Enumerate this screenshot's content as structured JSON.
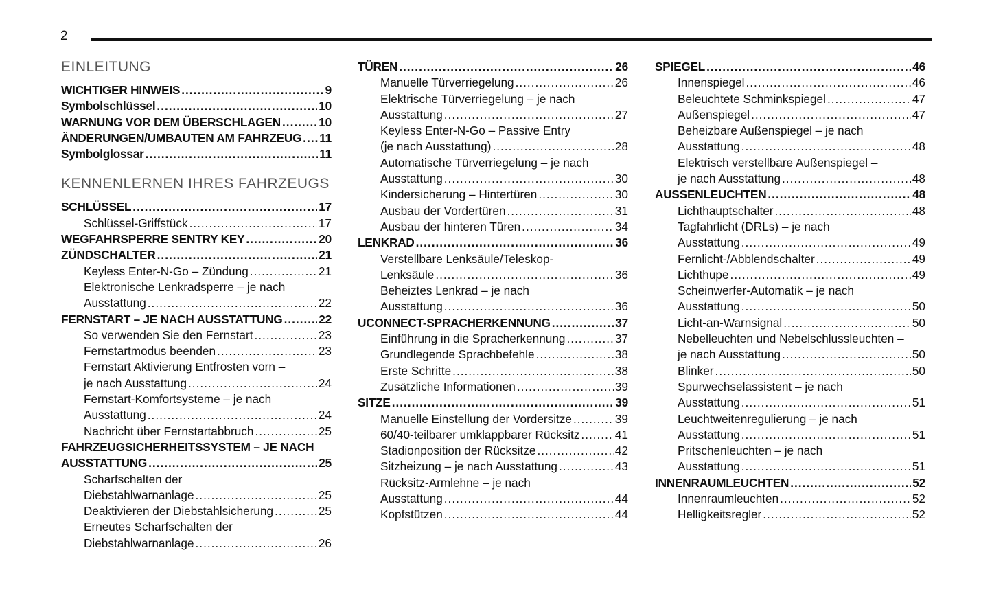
{
  "page_number": "2",
  "columns": [
    [
      {
        "type": "section",
        "text": "EINLEITUNG"
      },
      {
        "level": 1,
        "lines": [
          "WICHTIGER HINWEIS"
        ],
        "page": "9"
      },
      {
        "level": 1,
        "lines": [
          "Symbolschlüssel"
        ],
        "page": "10"
      },
      {
        "level": 1,
        "lines": [
          "WARNUNG VOR DEM ÜBERSCHLAGEN"
        ],
        "page": "10"
      },
      {
        "level": 1,
        "lines": [
          "ÄNDERUNGEN/UMBAUTEN AM FAHRZEUG"
        ],
        "page": "11"
      },
      {
        "level": 1,
        "lines": [
          "Symbolglossar"
        ],
        "page": "11"
      },
      {
        "type": "section",
        "text": "KENNENLERNEN IHRES FAHRZEUGS"
      },
      {
        "level": 1,
        "lines": [
          "SCHLÜSSEL"
        ],
        "page": "17"
      },
      {
        "level": 2,
        "lines": [
          "Schlüssel-Griffstück"
        ],
        "page": "17"
      },
      {
        "level": 1,
        "lines": [
          "WEGFAHRSPERRE SENTRY KEY"
        ],
        "page": "20"
      },
      {
        "level": 1,
        "lines": [
          "ZÜNDSCHALTER"
        ],
        "page": "21"
      },
      {
        "level": 2,
        "lines": [
          "Keyless Enter-N-Go – Zündung"
        ],
        "page": "21"
      },
      {
        "level": 2,
        "lines": [
          "Elektronische Lenkradsperre – je nach",
          "Ausstattung"
        ],
        "page": "22"
      },
      {
        "level": 1,
        "lines": [
          "FERNSTART – JE NACH AUSSTATTUNG"
        ],
        "page": "22"
      },
      {
        "level": 2,
        "lines": [
          "So verwenden Sie den Fernstart"
        ],
        "page": "23"
      },
      {
        "level": 2,
        "lines": [
          "Fernstartmodus beenden"
        ],
        "page": "23"
      },
      {
        "level": 2,
        "lines": [
          "Fernstart Aktivierung Entfrosten vorn –",
          "je nach Ausstattung"
        ],
        "page": "24"
      },
      {
        "level": 2,
        "lines": [
          "Fernstart-Komfortsysteme – je nach",
          "Ausstattung"
        ],
        "page": "24"
      },
      {
        "level": 2,
        "lines": [
          "Nachricht über Fernstartabbruch"
        ],
        "page": "25"
      },
      {
        "level": 1,
        "lines": [
          "FAHRZEUGSICHERHEITSSYSTEM – JE NACH",
          "AUSSTATTUNG"
        ],
        "page": "25"
      },
      {
        "level": 2,
        "lines": [
          "Scharfschalten der",
          "Diebstahlwarnanlage"
        ],
        "page": "25"
      },
      {
        "level": 2,
        "lines": [
          "Deaktivieren der Diebstahlsicherung"
        ],
        "page": "25"
      },
      {
        "level": 2,
        "lines": [
          "Erneutes Scharfschalten der",
          "Diebstahlwarnanlage"
        ],
        "page": "26"
      }
    ],
    [
      {
        "level": 1,
        "lines": [
          "TÜREN"
        ],
        "page": "26"
      },
      {
        "level": 2,
        "lines": [
          "Manuelle Türverriegelung"
        ],
        "page": "26"
      },
      {
        "level": 2,
        "lines": [
          "Elektrische Türverriegelung – je nach",
          "Ausstattung"
        ],
        "page": "27"
      },
      {
        "level": 2,
        "lines": [
          "Keyless Enter-N-Go – Passive Entry",
          "(je nach Ausstattung)"
        ],
        "page": "28"
      },
      {
        "level": 2,
        "lines": [
          "Automatische Türverriegelung – je nach",
          "Ausstattung"
        ],
        "page": "30"
      },
      {
        "level": 2,
        "lines": [
          "Kindersicherung – Hintertüren"
        ],
        "page": "30"
      },
      {
        "level": 2,
        "lines": [
          "Ausbau der Vordertüren"
        ],
        "page": "31"
      },
      {
        "level": 2,
        "lines": [
          "Ausbau der hinteren Türen"
        ],
        "page": "34"
      },
      {
        "level": 1,
        "lines": [
          "LENKRAD"
        ],
        "page": "36"
      },
      {
        "level": 2,
        "lines": [
          "Verstellbare Lenksäule/Teleskop-",
          "Lenksäule"
        ],
        "page": "36"
      },
      {
        "level": 2,
        "lines": [
          "Beheiztes Lenkrad – je nach",
          "Ausstattung"
        ],
        "page": "36"
      },
      {
        "level": 1,
        "lines": [
          "UCONNECT-SPRACHERKENNUNG"
        ],
        "page": "37"
      },
      {
        "level": 2,
        "lines": [
          "Einführung in die Spracherkennung"
        ],
        "page": "37"
      },
      {
        "level": 2,
        "lines": [
          "Grundlegende Sprachbefehle"
        ],
        "page": "38"
      },
      {
        "level": 2,
        "lines": [
          "Erste Schritte"
        ],
        "page": "38"
      },
      {
        "level": 2,
        "lines": [
          "Zusätzliche Informationen"
        ],
        "page": "39"
      },
      {
        "level": 1,
        "lines": [
          "SITZE"
        ],
        "page": "39"
      },
      {
        "level": 2,
        "lines": [
          "Manuelle Einstellung der Vordersitze"
        ],
        "page": "39"
      },
      {
        "level": 2,
        "lines": [
          "60/40-teilbarer umklappbarer Rücksitz"
        ],
        "page": "41"
      },
      {
        "level": 2,
        "lines": [
          "Stadionposition der Rücksitze"
        ],
        "page": "42"
      },
      {
        "level": 2,
        "lines": [
          "Sitzheizung – je nach Ausstattung"
        ],
        "page": "43"
      },
      {
        "level": 2,
        "lines": [
          "Rücksitz-Armlehne – je nach",
          "Ausstattung"
        ],
        "page": "44"
      },
      {
        "level": 2,
        "lines": [
          "Kopfstützen"
        ],
        "page": "44"
      }
    ],
    [
      {
        "level": 1,
        "lines": [
          "SPIEGEL"
        ],
        "page": "46"
      },
      {
        "level": 2,
        "lines": [
          "Innenspiegel"
        ],
        "page": "46"
      },
      {
        "level": 2,
        "lines": [
          "Beleuchtete Schminkspiegel"
        ],
        "page": "47"
      },
      {
        "level": 2,
        "lines": [
          "Außenspiegel"
        ],
        "page": "47"
      },
      {
        "level": 2,
        "lines": [
          "Beheizbare Außenspiegel – je nach",
          "Ausstattung"
        ],
        "page": "48"
      },
      {
        "level": 2,
        "lines": [
          "Elektrisch verstellbare Außenspiegel –",
          "je nach Ausstattung"
        ],
        "page": "48"
      },
      {
        "level": 1,
        "lines": [
          "AUSSENLEUCHTEN"
        ],
        "page": "48"
      },
      {
        "level": 2,
        "lines": [
          "Lichthauptschalter"
        ],
        "page": "48"
      },
      {
        "level": 2,
        "lines": [
          "Tagfahrlicht (DRLs) – je nach",
          "Ausstattung"
        ],
        "page": "49"
      },
      {
        "level": 2,
        "lines": [
          "Fernlicht-/Abblendschalter"
        ],
        "page": "49"
      },
      {
        "level": 2,
        "lines": [
          "Lichthupe"
        ],
        "page": "49"
      },
      {
        "level": 2,
        "lines": [
          "Scheinwerfer-Automatik – je nach",
          "Ausstattung"
        ],
        "page": "50"
      },
      {
        "level": 2,
        "lines": [
          "Licht-an-Warnsignal"
        ],
        "page": "50"
      },
      {
        "level": 2,
        "lines": [
          "Nebelleuchten und Nebelschlussleuchten –",
          "je nach Ausstattung"
        ],
        "page": "50"
      },
      {
        "level": 2,
        "lines": [
          "Blinker"
        ],
        "page": "50"
      },
      {
        "level": 2,
        "lines": [
          "Spurwechselassistent – je nach",
          "Ausstattung"
        ],
        "page": "51"
      },
      {
        "level": 2,
        "lines": [
          "Leuchtweitenregulierung – je nach",
          "Ausstattung"
        ],
        "page": "51"
      },
      {
        "level": 2,
        "lines": [
          "Pritschenleuchten – je nach",
          "Ausstattung"
        ],
        "page": "51"
      },
      {
        "level": 1,
        "lines": [
          "INNENRAUMLEUCHTEN"
        ],
        "page": "52"
      },
      {
        "level": 2,
        "lines": [
          "Innenraumleuchten"
        ],
        "page": "52"
      },
      {
        "level": 2,
        "lines": [
          "Helligkeitsregler"
        ],
        "page": "52"
      }
    ]
  ]
}
